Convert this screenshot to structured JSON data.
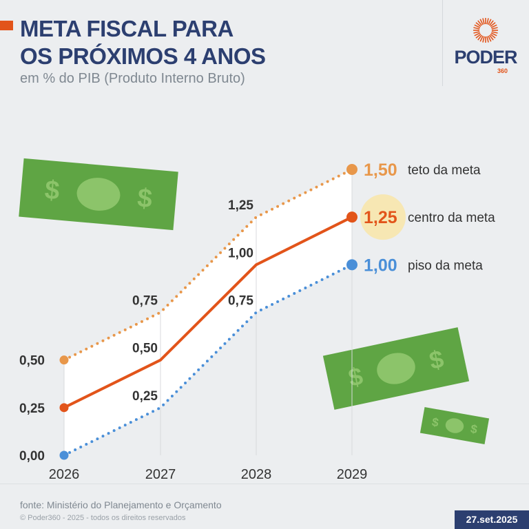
{
  "header": {
    "title_line1": "META FISCAL PARA",
    "title_line2": "OS PRÓXIMOS 4 ANOS",
    "subtitle": "em % do PIB (Produto Interno Bruto)"
  },
  "logo": {
    "word": "PODER",
    "number": "360"
  },
  "colors": {
    "teto": "#e8974a",
    "centro": "#e2541a",
    "piso": "#4a8fd8",
    "title": "#2c3f70",
    "highlight": "#f7e7b3"
  },
  "chart_data": {
    "type": "line",
    "categories": [
      "2026",
      "2027",
      "2028",
      "2029"
    ],
    "ylim": [
      0,
      1.5
    ],
    "yticks": [
      "0,00",
      "0,25",
      "0,50"
    ],
    "series": [
      {
        "name": "teto da meta",
        "values": [
          0.5,
          0.75,
          1.25,
          1.5
        ],
        "labels": [
          "0,50",
          "0,75",
          "1,25",
          "1,50"
        ],
        "style": "dotted",
        "color": "#e8974a"
      },
      {
        "name": "centro da meta",
        "values": [
          0.25,
          0.5,
          1.0,
          1.25
        ],
        "labels": [
          "0,25",
          "0,50",
          "1,00",
          "1,25"
        ],
        "style": "solid",
        "color": "#e2541a"
      },
      {
        "name": "piso da meta",
        "values": [
          0,
          0.25,
          0.75,
          1.0
        ],
        "labels": [
          "0,00",
          "0,25",
          "0,75",
          "1,00"
        ],
        "style": "dotted",
        "color": "#4a8fd8"
      }
    ]
  },
  "footer": {
    "source": "fonte: Ministério do Planejamento e Orçamento",
    "copyright": "© Poder360 - 2025 - todos os direitos reservados",
    "date": "27.set.2025"
  }
}
